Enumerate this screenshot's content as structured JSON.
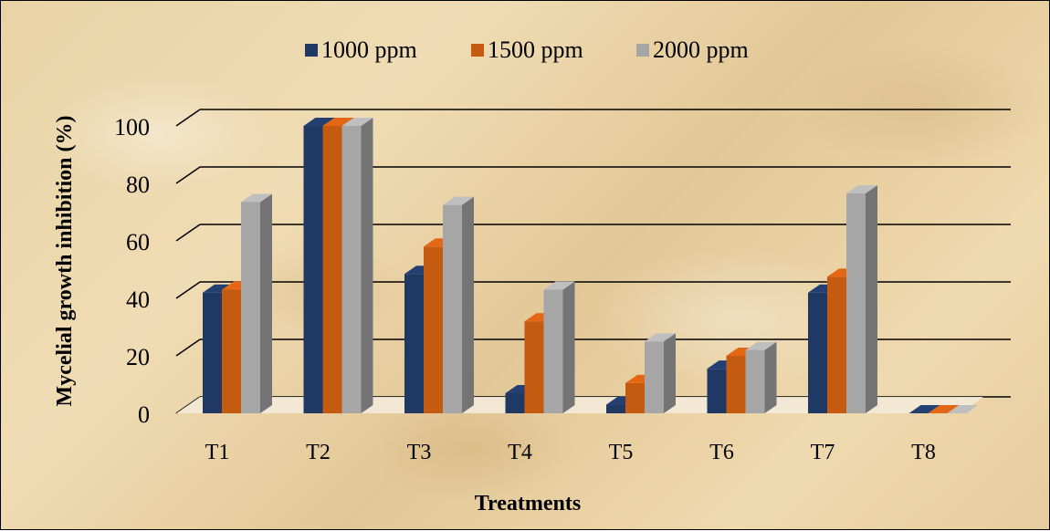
{
  "chart_data": {
    "type": "bar",
    "title": "",
    "xlabel": "Treatments",
    "ylabel": "Mycelial  growth inhibition (%)",
    "categories": [
      "T1",
      "T2",
      "T3",
      "T4",
      "T5",
      "T6",
      "T7",
      "T8"
    ],
    "series": [
      {
        "name": "1000 ppm",
        "color": "#1f3864",
        "values": [
          42,
          100,
          48.5,
          7,
          3,
          15.5,
          42,
          0
        ]
      },
      {
        "name": "1500 ppm",
        "color": "#c55a11",
        "values": [
          43,
          100,
          58,
          32,
          10.5,
          20,
          47.5,
          0
        ]
      },
      {
        "name": "2000 ppm",
        "color": "#a6a6a6",
        "values": [
          73.5,
          100,
          72.5,
          43,
          25,
          22,
          76.5,
          0
        ]
      }
    ],
    "yticks": [
      0,
      20,
      40,
      60,
      80,
      100
    ],
    "ylim": [
      0,
      100
    ],
    "grid": true,
    "legend_position": "top-center",
    "style": "3d-clustered-column"
  }
}
